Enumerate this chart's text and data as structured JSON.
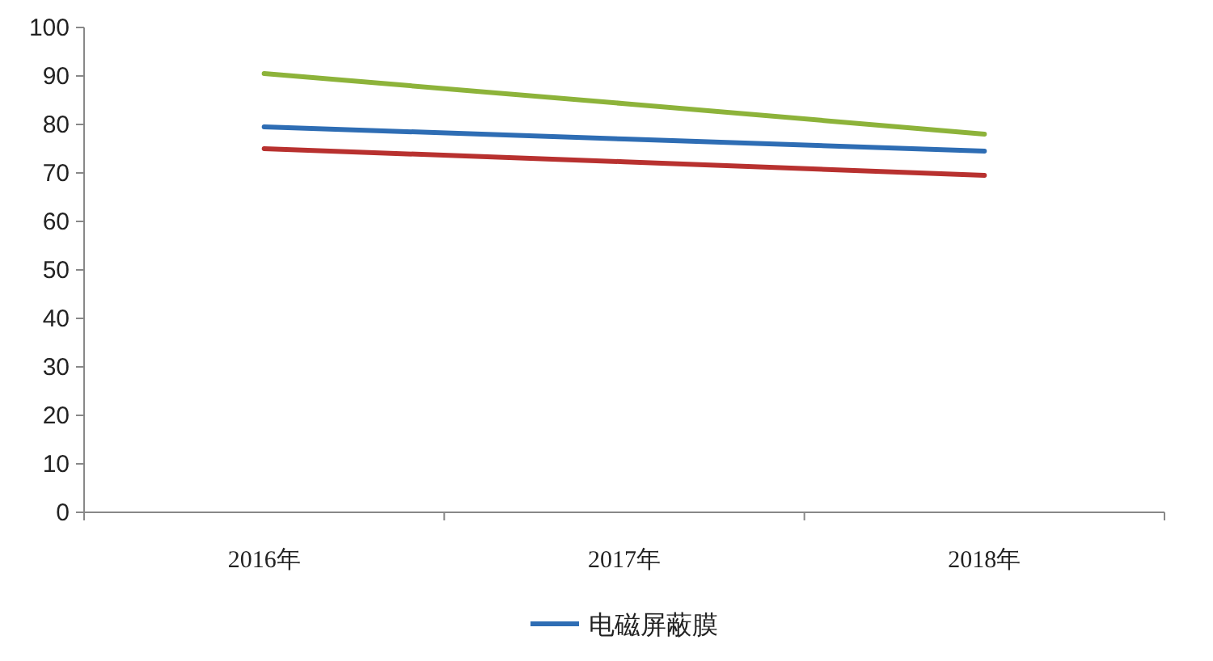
{
  "chart_data": {
    "type": "line",
    "categories": [
      "2016年",
      "2017年",
      "2018年"
    ],
    "series": [
      {
        "name": "电磁屏蔽膜",
        "color": "#2e6db4",
        "values": [
          79.5,
          77,
          74.5
        ]
      },
      {
        "color": "#b8312f",
        "values": [
          75,
          72.3,
          69.5
        ]
      },
      {
        "color": "#8db33a",
        "values": [
          90.5,
          84.3,
          78
        ]
      }
    ],
    "ylim": [
      0,
      100
    ],
    "yticks": [
      0,
      10,
      20,
      30,
      40,
      50,
      60,
      70,
      80,
      90,
      100
    ],
    "grid": false,
    "legend": "bottom",
    "marker": "none",
    "line_style": "solid"
  }
}
